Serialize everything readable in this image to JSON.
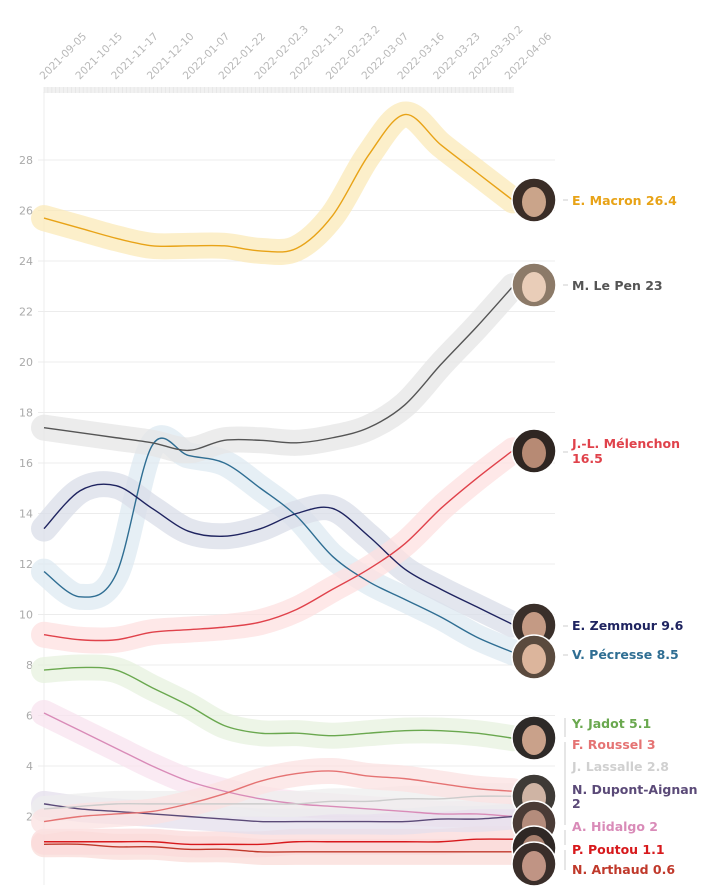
{
  "chart_data": {
    "type": "line",
    "title": "",
    "xlabel": "",
    "ylabel": "",
    "x": [
      "2021-09-05",
      "2021-10-15",
      "2021-11-17",
      "2021-12-10",
      "2022-01-07",
      "2022-01-22",
      "2022-02-02.3",
      "2022-02-11.3",
      "2022-02-23.2",
      "2022-03-07",
      "2022-03-16",
      "2022-03-23",
      "2022-03-30.2",
      "2022-04-06"
    ],
    "x_tick_labels": [
      "2021-09-05",
      "2021-10-15",
      "2021-11-17",
      "2021-12-10",
      "2022-01-07",
      "2022-01-22",
      "2022-02-02.3",
      "2022-02-11.3",
      "2022-02-23.2",
      "2022-03-07",
      "2022-03-16",
      "2022-03-23",
      "2022-03-30.2",
      "2022-04-06"
    ],
    "y_ticks": [
      2,
      4,
      6,
      8,
      10,
      12,
      14,
      16,
      18,
      20,
      22,
      24,
      26,
      28
    ],
    "ylim": [
      0,
      31
    ],
    "grid": true,
    "legend": "direct labels at right end of lines with candidate portraits",
    "series": [
      {
        "name": "E. Macron",
        "final": "26.4",
        "label": "E. Macron 26.4",
        "color": "#e8a317",
        "band": "#fbe9b8",
        "values": [
          25.7,
          25.3,
          24.9,
          24.6,
          24.6,
          24.6,
          24.4,
          24.5,
          25.8,
          28.2,
          29.8,
          28.6,
          27.5,
          26.4
        ]
      },
      {
        "name": "M. Le Pen",
        "final": "23",
        "label": "M. Le Pen 23",
        "color": "#555555",
        "band": "#e6e6e6",
        "values": [
          17.4,
          17.2,
          17.0,
          16.8,
          16.5,
          16.9,
          16.9,
          16.8,
          17.0,
          17.4,
          18.3,
          19.9,
          21.4,
          23.0
        ]
      },
      {
        "name": "J.-L. Mélenchon",
        "final": "16.5",
        "label": "J.-L. Mélenchon 16.5",
        "color": "#e0424b",
        "band": "#fde0e0",
        "values": [
          9.2,
          9.0,
          9.0,
          9.3,
          9.4,
          9.5,
          9.7,
          10.2,
          11.0,
          11.8,
          12.8,
          14.2,
          15.4,
          16.5
        ]
      },
      {
        "name": "E. Zemmour",
        "final": "9.6",
        "label": "E. Zemmour 9.6",
        "color": "#1f2460",
        "band": "#dadde8",
        "values": [
          13.4,
          14.9,
          15.1,
          14.2,
          13.3,
          13.1,
          13.4,
          14.0,
          14.2,
          13.1,
          11.8,
          11.0,
          10.3,
          9.6
        ]
      },
      {
        "name": "V. Pécresse",
        "final": "8.5",
        "label": "V. Pécresse 8.5",
        "color": "#2f6e93",
        "band": "#dde9f1",
        "values": [
          11.7,
          10.7,
          11.6,
          16.7,
          16.3,
          16.0,
          15.0,
          13.9,
          12.3,
          11.3,
          10.6,
          9.9,
          9.1,
          8.5
        ]
      },
      {
        "name": "Y. Jadot",
        "final": "5.1",
        "label": "Y. Jadot 5.1",
        "color": "#6aa84f",
        "band": "#e7f2df",
        "values": [
          7.8,
          7.9,
          7.8,
          7.1,
          6.4,
          5.6,
          5.3,
          5.3,
          5.2,
          5.3,
          5.4,
          5.4,
          5.3,
          5.1
        ]
      },
      {
        "name": "F. Roussel",
        "final": "3",
        "label": "F. Roussel 3",
        "color": "#e57373",
        "band": "#fbe1e1",
        "values": [
          1.8,
          2.0,
          2.1,
          2.2,
          2.5,
          2.9,
          3.4,
          3.7,
          3.8,
          3.6,
          3.5,
          3.3,
          3.1,
          3.0
        ]
      },
      {
        "name": "J. Lassalle",
        "final": "2.8",
        "label": "J. Lassalle 2.8",
        "color": "#cccccc",
        "band": "#eeeeee",
        "values": [
          2.3,
          2.4,
          2.5,
          2.5,
          2.5,
          2.5,
          2.5,
          2.5,
          2.6,
          2.6,
          2.7,
          2.7,
          2.8,
          2.8
        ]
      },
      {
        "name": "N. Dupont-Aignan",
        "final": "2",
        "label": "N. Dupont-Aignan 2",
        "color": "#5b4a78",
        "band": "#e4dfec",
        "values": [
          2.5,
          2.3,
          2.2,
          2.1,
          2.0,
          1.9,
          1.8,
          1.8,
          1.8,
          1.8,
          1.8,
          1.9,
          1.9,
          2.0
        ]
      },
      {
        "name": "A. Hidalgo",
        "final": "2",
        "label": "A. Hidalgo 2",
        "color": "#d98bb8",
        "band": "#f8e3ef",
        "values": [
          6.1,
          5.4,
          4.7,
          4.0,
          3.4,
          3.0,
          2.7,
          2.5,
          2.4,
          2.3,
          2.2,
          2.1,
          2.1,
          2.0
        ]
      },
      {
        "name": "P. Poutou",
        "final": "1.1",
        "label": "P. Poutou 1.1",
        "color": "#d7191c",
        "band": "#fbdada",
        "values": [
          1.0,
          1.0,
          1.0,
          1.0,
          0.9,
          0.9,
          0.9,
          1.0,
          1.0,
          1.0,
          1.0,
          1.0,
          1.1,
          1.1
        ]
      },
      {
        "name": "N. Arthaud",
        "final": "0.6",
        "label": "N. Arthaud 0.6",
        "color": "#c0392b",
        "band": "#f9dcd8",
        "values": [
          0.9,
          0.9,
          0.8,
          0.8,
          0.7,
          0.7,
          0.6,
          0.6,
          0.6,
          0.6,
          0.6,
          0.6,
          0.6,
          0.6
        ]
      }
    ]
  },
  "labels": {
    "macron": "E. Macron 26.4",
    "lepen": "M. Le Pen 23",
    "melenchon_1": "J.-L. Mélenchon",
    "melenchon_2": "16.5",
    "zemmour": "E. Zemmour 9.6",
    "pecresse": "V. Pécresse 8.5",
    "jadot": "Y. Jadot 5.1",
    "roussel": "F. Roussel 3",
    "lassalle": "J. Lassalle 2.8",
    "dupont_1": "N. Dupont-Aignan",
    "dupont_2": "2",
    "hidalgo": "A. Hidalgo 2",
    "poutou": "P. Poutou 1.1",
    "arthaud": "N. Arthaud 0.6"
  },
  "portraits": [
    {
      "name": "E. Macron",
      "icon": "portrait-photo"
    },
    {
      "name": "M. Le Pen",
      "icon": "portrait-photo"
    },
    {
      "name": "J.-L. Mélenchon",
      "icon": "portrait-photo"
    },
    {
      "name": "E. Zemmour",
      "icon": "portrait-photo"
    },
    {
      "name": "V. Pécresse",
      "icon": "portrait-photo"
    },
    {
      "name": "Y. Jadot",
      "icon": "portrait-photo"
    },
    {
      "name": "N. Dupont-Aignan",
      "icon": "portrait-photo"
    },
    {
      "name": "A. Hidalgo",
      "icon": "portrait-photo"
    },
    {
      "name": "P. Poutou",
      "icon": "portrait-photo"
    },
    {
      "name": "N. Arthaud",
      "icon": "portrait-photo"
    }
  ]
}
